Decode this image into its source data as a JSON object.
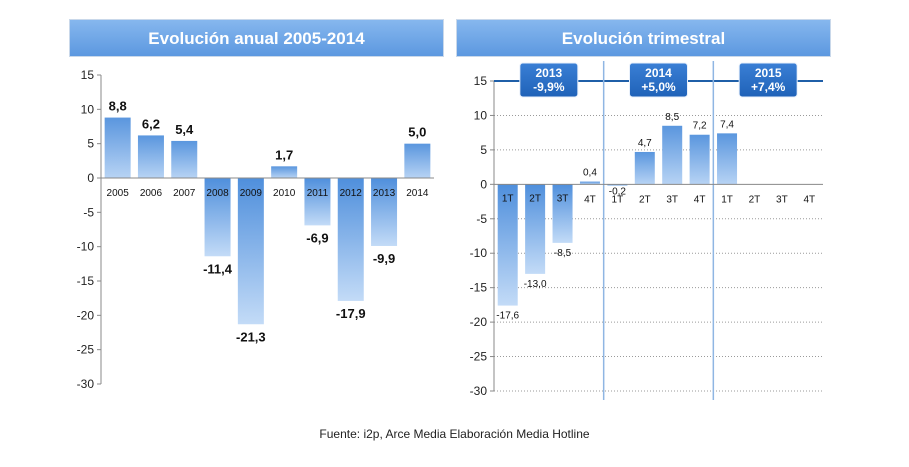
{
  "source": "Fuente: i2p, Arce Media Elaboración Media Hotline",
  "chart_data": [
    {
      "type": "bar",
      "title": "Evolución anual 2005-2014",
      "categories": [
        "2005",
        "2006",
        "2007",
        "2008",
        "2009",
        "2010",
        "2011",
        "2012",
        "2013",
        "2014"
      ],
      "values": [
        8.8,
        6.2,
        5.4,
        -11.4,
        -21.3,
        1.7,
        -6.9,
        -17.9,
        -9.9,
        5.0
      ],
      "value_labels": [
        "8,8",
        "6,2",
        "5,4",
        "-11,4",
        "-21,3",
        "1,7",
        "-6,9",
        "-17,9",
        "-9,9",
        "5,0"
      ],
      "ylim": [
        -30,
        15
      ],
      "yticks": [
        15,
        10,
        5,
        0,
        -5,
        -10,
        -15,
        -20,
        -25,
        -30
      ],
      "grid": false,
      "bar_color": "#6ea6e8"
    },
    {
      "type": "bar",
      "title": "Evolución trimestral",
      "categories": [
        "1T",
        "2T",
        "3T",
        "4T",
        "1T",
        "2T",
        "3T",
        "4T",
        "1T",
        "2T",
        "3T",
        "4T"
      ],
      "values": [
        -17.6,
        -13.0,
        -8.5,
        0.4,
        -0.2,
        4.7,
        8.5,
        7.2,
        7.4,
        null,
        null,
        null
      ],
      "value_labels": [
        "-17,6",
        "-13,0",
        "-8,5",
        "0,4",
        "-0,2",
        "4,7",
        "8,5",
        "7,2",
        "7,4",
        "",
        "",
        ""
      ],
      "ylim": [
        -30,
        15
      ],
      "yticks": [
        15,
        10,
        5,
        0,
        -5,
        -10,
        -15,
        -20,
        -25,
        -30
      ],
      "grid": true,
      "bar_color": "#6ea6e8",
      "annotations": [
        {
          "year": "2013",
          "change": "-9,9%"
        },
        {
          "year": "2014",
          "change": "+5,0%"
        },
        {
          "year": "2015",
          "change": "+7,4%"
        }
      ]
    }
  ]
}
